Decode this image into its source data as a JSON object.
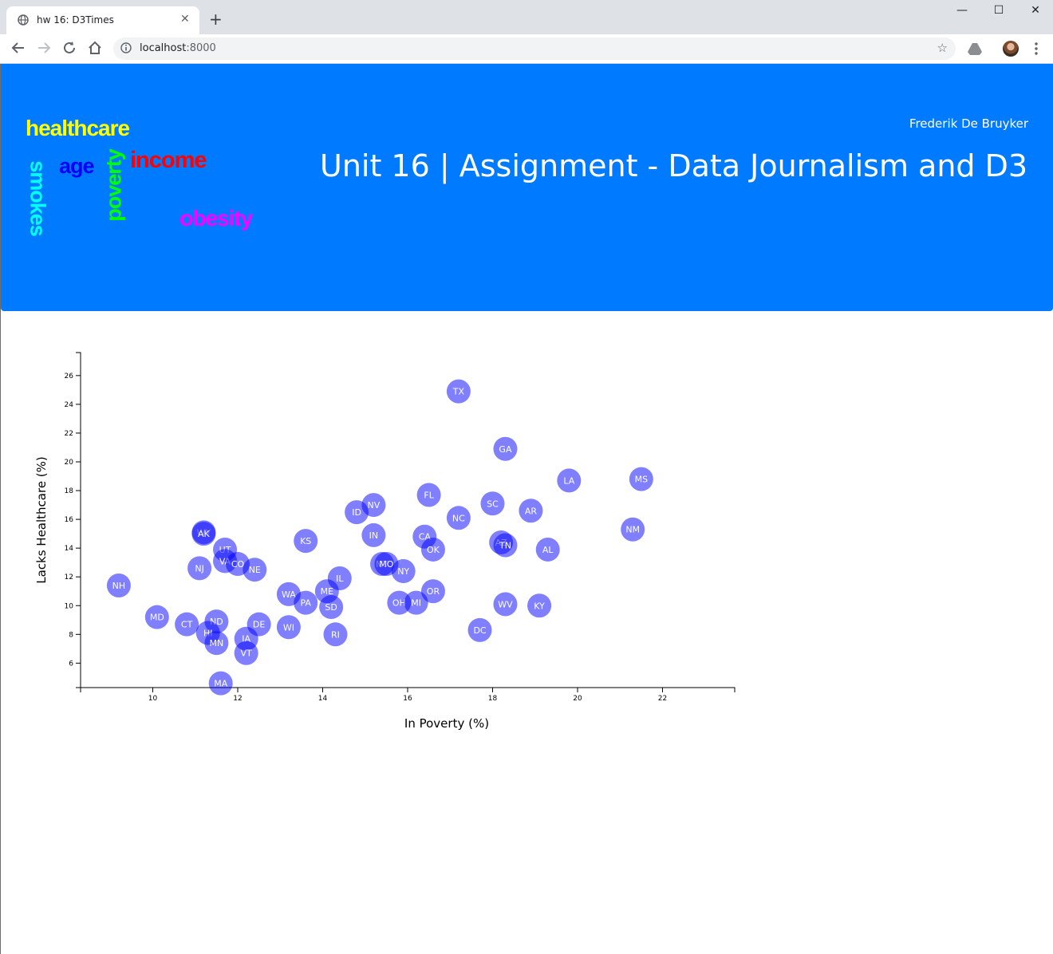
{
  "browser": {
    "tab_title": "hw 16: D3Times",
    "new_tab": "+",
    "url_host": "localhost",
    "url_port": ":8000"
  },
  "header": {
    "author": "Frederik De Bruyker",
    "title": "Unit 16 | Assignment - Data Journalism and D3",
    "word_cloud": [
      {
        "word": "healthcare",
        "color": "#ffff00"
      },
      {
        "word": "age",
        "color": "#0000ff"
      },
      {
        "word": "income",
        "color": "#ff0000"
      },
      {
        "word": "poverty",
        "color": "#00ff00"
      },
      {
        "word": "smokes",
        "color": "#00ffff"
      },
      {
        "word": "obesity",
        "color": "#ff00ff"
      }
    ]
  },
  "chart_data": {
    "type": "scatter",
    "xlabel": "In Poverty (%)",
    "ylabel": "Lacks Healthcare (%)",
    "xlim": [
      8.3,
      23.7
    ],
    "ylim": [
      4.3,
      27.6
    ],
    "xticks": [
      10,
      12,
      14,
      16,
      18,
      20,
      22
    ],
    "yticks": [
      6,
      8,
      10,
      12,
      14,
      16,
      18,
      20,
      22,
      24,
      26
    ],
    "marker_color": "#0000ff",
    "points": [
      {
        "label": "TX",
        "x": 17.2,
        "y": 24.9
      },
      {
        "label": "GA",
        "x": 18.3,
        "y": 20.9
      },
      {
        "label": "LA",
        "x": 19.8,
        "y": 18.7
      },
      {
        "label": "MS",
        "x": 21.5,
        "y": 18.8
      },
      {
        "label": "FL",
        "x": 16.5,
        "y": 17.7
      },
      {
        "label": "SC",
        "x": 18.0,
        "y": 17.1
      },
      {
        "label": "NV",
        "x": 15.2,
        "y": 17.0
      },
      {
        "label": "AR",
        "x": 18.9,
        "y": 16.6
      },
      {
        "label": "ID",
        "x": 14.8,
        "y": 16.5
      },
      {
        "label": "NC",
        "x": 17.2,
        "y": 16.1
      },
      {
        "label": "NM",
        "x": 21.3,
        "y": 15.3
      },
      {
        "label": "WY",
        "x": 11.2,
        "y": 15.1
      },
      {
        "label": "AK",
        "x": 11.2,
        "y": 15.0
      },
      {
        "label": "IN",
        "x": 15.2,
        "y": 14.9
      },
      {
        "label": "CA",
        "x": 16.4,
        "y": 14.8
      },
      {
        "label": "KS",
        "x": 13.6,
        "y": 14.5
      },
      {
        "label": "AZ",
        "x": 18.2,
        "y": 14.4
      },
      {
        "label": "TN",
        "x": 18.3,
        "y": 14.2
      },
      {
        "label": "OK",
        "x": 16.6,
        "y": 13.9
      },
      {
        "label": "AL",
        "x": 19.3,
        "y": 13.9
      },
      {
        "label": "UT",
        "x": 11.7,
        "y": 13.9
      },
      {
        "label": "VA",
        "x": 11.7,
        "y": 13.1
      },
      {
        "label": "CO",
        "x": 12.0,
        "y": 12.9
      },
      {
        "label": "MT",
        "x": 15.4,
        "y": 12.9
      },
      {
        "label": "MO",
        "x": 15.5,
        "y": 12.9
      },
      {
        "label": "NJ",
        "x": 11.1,
        "y": 12.6
      },
      {
        "label": "NE",
        "x": 12.4,
        "y": 12.5
      },
      {
        "label": "NY",
        "x": 15.9,
        "y": 12.4
      },
      {
        "label": "IL",
        "x": 14.4,
        "y": 11.9
      },
      {
        "label": "NH",
        "x": 9.2,
        "y": 11.4
      },
      {
        "label": "OR",
        "x": 16.6,
        "y": 11.0
      },
      {
        "label": "ME",
        "x": 14.1,
        "y": 11.0
      },
      {
        "label": "WA",
        "x": 13.2,
        "y": 10.8
      },
      {
        "label": "PA",
        "x": 13.6,
        "y": 10.2
      },
      {
        "label": "OH",
        "x": 15.8,
        "y": 10.2
      },
      {
        "label": "MI",
        "x": 16.2,
        "y": 10.2
      },
      {
        "label": "WV",
        "x": 18.3,
        "y": 10.1
      },
      {
        "label": "KY",
        "x": 19.1,
        "y": 10.0
      },
      {
        "label": "SD",
        "x": 14.2,
        "y": 9.9
      },
      {
        "label": "MD",
        "x": 10.1,
        "y": 9.2
      },
      {
        "label": "ND",
        "x": 11.5,
        "y": 8.9
      },
      {
        "label": "CT",
        "x": 10.8,
        "y": 8.7
      },
      {
        "label": "DE",
        "x": 12.5,
        "y": 8.7
      },
      {
        "label": "WI",
        "x": 13.2,
        "y": 8.5
      },
      {
        "label": "DC",
        "x": 17.7,
        "y": 8.3
      },
      {
        "label": "HI",
        "x": 11.3,
        "y": 8.1
      },
      {
        "label": "RI",
        "x": 14.3,
        "y": 8.0
      },
      {
        "label": "IA",
        "x": 12.2,
        "y": 7.7
      },
      {
        "label": "MN",
        "x": 11.5,
        "y": 7.4
      },
      {
        "label": "VT",
        "x": 12.2,
        "y": 6.7
      },
      {
        "label": "MA",
        "x": 11.6,
        "y": 4.6
      }
    ]
  }
}
